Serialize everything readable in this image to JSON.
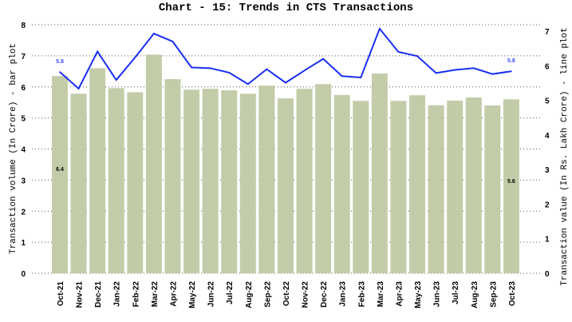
{
  "chart_data": {
    "type": "bar+line",
    "title": "Chart - 15: Trends in CTS Transactions",
    "categories": [
      "Oct-21",
      "Nov-21",
      "Dec-21",
      "Jan-22",
      "Feb-22",
      "Mar-22",
      "Apr-22",
      "May-22",
      "Jun-22",
      "Jul-22",
      "Aug-22",
      "Sep-22",
      "Oct-22",
      "Nov-22",
      "Dec-22",
      "Jan-23",
      "Feb-23",
      "Mar-23",
      "Apr-23",
      "May-23",
      "Jun-23",
      "Jul-23",
      "Aug-23",
      "Sep-23",
      "Oct-23"
    ],
    "series": [
      {
        "name": "Transaction volume (In Crore)",
        "type": "bar",
        "axis": "left",
        "color": "#c3cca8",
        "values": [
          6.35,
          5.78,
          6.6,
          5.96,
          5.83,
          7.04,
          6.25,
          5.91,
          5.94,
          5.89,
          5.78,
          6.04,
          5.63,
          5.94,
          6.09,
          5.74,
          5.55,
          6.43,
          5.55,
          5.73,
          5.41,
          5.56,
          5.66,
          5.4,
          5.6
        ]
      },
      {
        "name": "Transaction value (In Rs. Lakh Crore)",
        "type": "line",
        "axis": "right",
        "color": "#1a2ff0",
        "values": [
          5.82,
          5.34,
          6.41,
          5.59,
          6.24,
          6.93,
          6.7,
          5.95,
          5.93,
          5.8,
          5.47,
          5.9,
          5.51,
          5.86,
          6.2,
          5.7,
          5.66,
          7.07,
          6.4,
          6.28,
          5.79,
          5.88,
          5.93,
          5.76,
          5.84
        ]
      }
    ],
    "annotations": [
      {
        "series": "bar",
        "index": 0,
        "text": "6.4"
      },
      {
        "series": "bar",
        "index": 24,
        "text": "5.6"
      },
      {
        "series": "line",
        "index": 0,
        "text": "5.8"
      },
      {
        "series": "line",
        "index": 24,
        "text": "5.8"
      }
    ],
    "ylabel": "Transaction volume (In Crore) - bar plot",
    "y2label": "Transaction value (In Rs. Lakh Crore) - line plot",
    "ylim": [
      0,
      8
    ],
    "y2lim": [
      0,
      7
    ],
    "yticks": [
      "0",
      "1",
      "2",
      "3",
      "4",
      "5",
      "6",
      "7",
      "8"
    ],
    "y2ticks": [
      "0",
      "1",
      "2",
      "3",
      "4",
      "5",
      "6",
      "7"
    ],
    "grid": true
  }
}
